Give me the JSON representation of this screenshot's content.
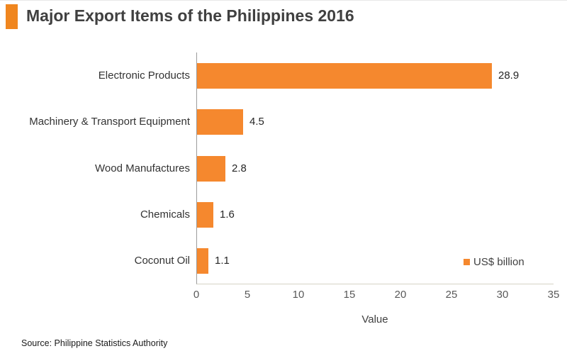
{
  "title": {
    "text": "Major Export Items of the Philippines 2016"
  },
  "chart_data": {
    "type": "bar",
    "orientation": "horizontal",
    "title": "Major Export Items of the Philippines 2016",
    "categories": [
      "Electronic Products",
      "Machinery & Transport Equipment",
      "Wood Manufactures",
      "Chemicals",
      "Coconut Oil"
    ],
    "values": [
      28.9,
      4.5,
      2.8,
      1.6,
      1.1
    ],
    "value_labels": [
      "28.9",
      "4.5",
      "2.8",
      "1.6",
      "1.1"
    ],
    "xlabel": "Value",
    "ylabel": "",
    "xlim": [
      0,
      35
    ],
    "x_ticks": [
      0,
      5,
      10,
      15,
      20,
      25,
      30,
      35
    ],
    "grid": false,
    "legend": {
      "label": "US$ billion",
      "position": "bottom-right"
    },
    "bar_color": "#F5882E"
  },
  "source": {
    "text": "Source: Philippine Statistics Authority"
  },
  "colors": {
    "accent": "#F5882E",
    "title_marker": "#F0861F",
    "title_text": "#404040",
    "tick_text": "#595959",
    "y_axis_line": "#9b9b9b",
    "x_axis_line": "#d6d3c6"
  }
}
